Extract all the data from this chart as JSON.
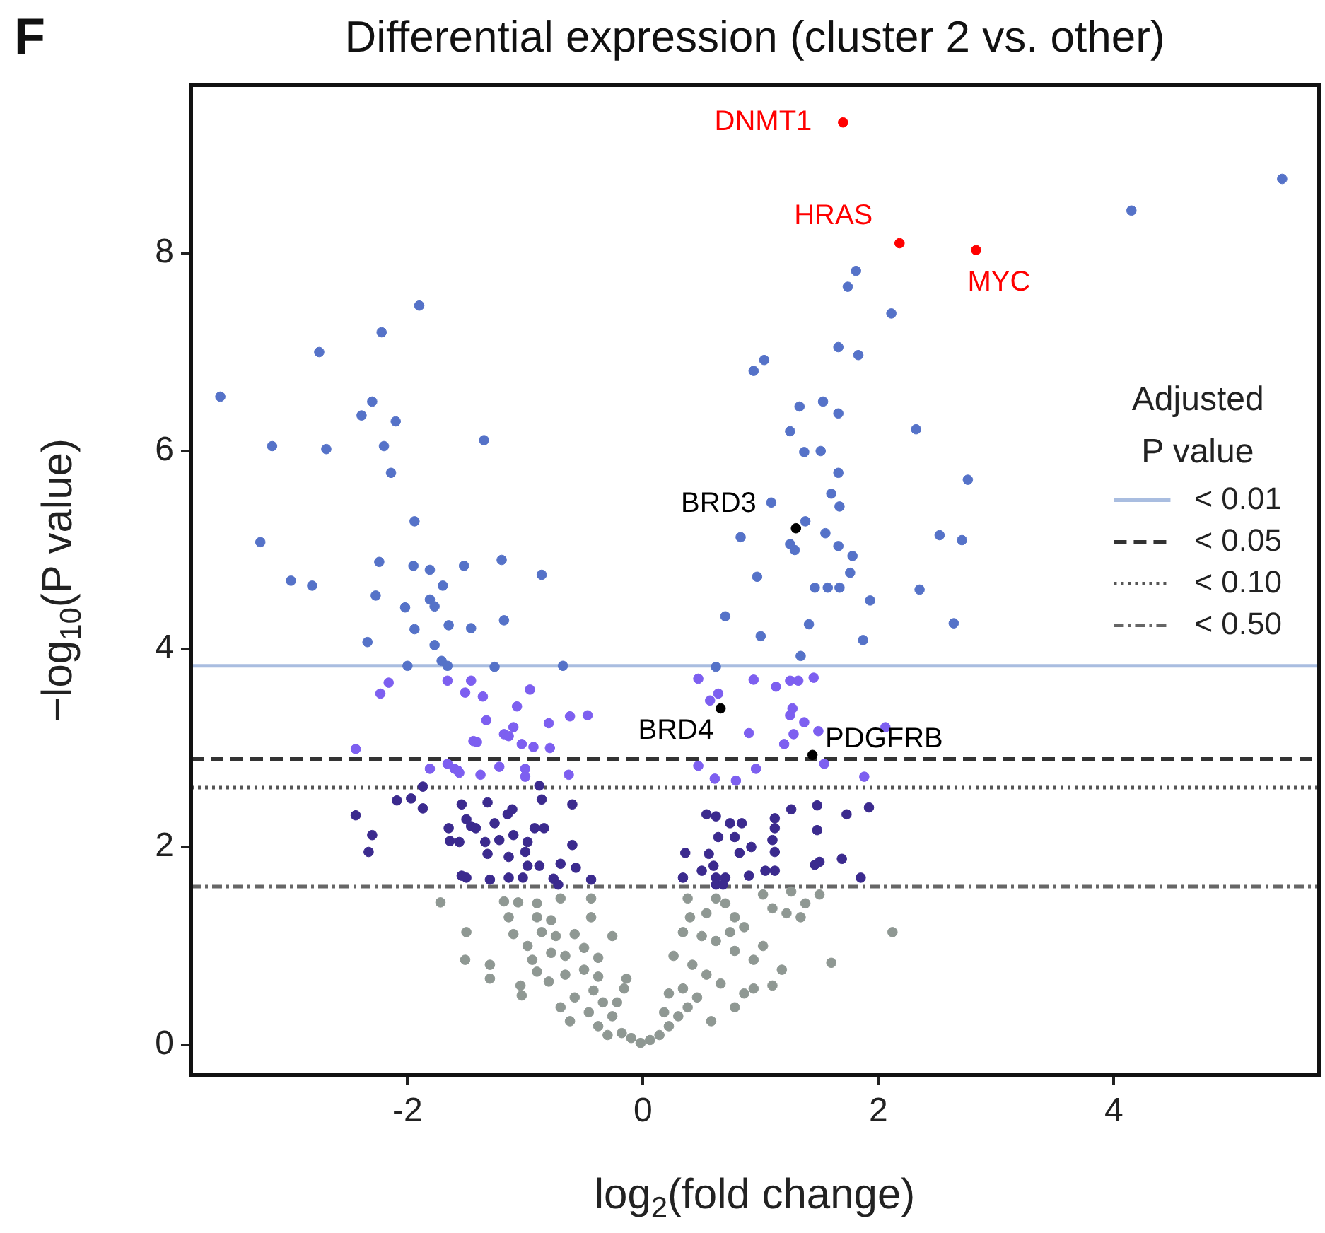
{
  "chart_data": {
    "type": "scatter",
    "title": "Differential expression (cluster 2 vs. other)",
    "xlabel": "log$_{2}$(fold change)",
    "ylabel": "−log$_{10}$(P value)",
    "legend_title": "Adjusted P value",
    "legend": "right",
    "grid": false,
    "marker": "circle",
    "xlim": [
      -3.84,
      5.74
    ],
    "xticks": [
      -2,
      0,
      2,
      4
    ],
    "ylim": [
      -0.3,
      9.7
    ],
    "yticks": [
      0,
      2,
      4,
      6,
      8
    ],
    "series": [
      {
        "type": "line",
        "name": "< 0.01",
        "color": "#a9bde0",
        "line_style": "solid",
        "marker": "none",
        "x": [
          -3.84,
          5.74
        ],
        "values": [
          3.83,
          3.83
        ]
      },
      {
        "type": "line",
        "name": "< 0.05",
        "color": "#333333",
        "line_style": "dashed",
        "marker": "none",
        "x": [
          -3.84,
          5.74
        ],
        "values": [
          2.89,
          2.89
        ]
      },
      {
        "type": "line",
        "name": "< 0.10",
        "color": "#555555",
        "line_style": "dotted",
        "marker": "none",
        "x": [
          -3.84,
          5.74
        ],
        "values": [
          2.6,
          2.6
        ]
      },
      {
        "type": "line",
        "name": "< 0.50",
        "color": "#666666",
        "line_style": "dashdot",
        "marker": "none",
        "x": [
          -3.84,
          5.74
        ],
        "values": [
          1.6,
          1.6
        ]
      },
      {
        "color": "#5572c8",
        "x": [
          -1.9,
          -2.22,
          -2.75,
          -3.59,
          -2.3,
          -2.39,
          -2.1,
          -3.15,
          -2.69,
          -2.2,
          -1.35,
          -2.14,
          -1.94,
          -3.25,
          -2.24,
          -1.95,
          -1.81,
          -1.52,
          -1.2,
          -0.86,
          -2.99,
          -2.81,
          -1.7,
          -2.27,
          -1.81,
          -1.77,
          -2.02,
          -1.94,
          -1.65,
          -1.46,
          -1.18,
          -2.34,
          -1.77,
          -2.0,
          -1.71,
          -1.66,
          -1.26,
          -0.68,
          1.0,
          1.41,
          1.87,
          1.34,
          0.62,
          5.43,
          4.15,
          1.81,
          1.74,
          2.11,
          1.66,
          1.83,
          1.03,
          0.94,
          1.33,
          1.53,
          1.66,
          2.32,
          1.25,
          1.37,
          1.51,
          1.66,
          2.76,
          1.09,
          1.6,
          1.67,
          1.38,
          0.83,
          1.55,
          2.52,
          2.71,
          1.25,
          1.29,
          1.66,
          1.78,
          1.76,
          0.97,
          1.46,
          1.57,
          1.67,
          2.35,
          1.93,
          0.7,
          2.64
        ],
        "values": [
          7.47,
          7.2,
          7.0,
          6.55,
          6.5,
          6.36,
          6.3,
          6.05,
          6.02,
          6.05,
          6.11,
          5.78,
          5.29,
          5.08,
          4.88,
          4.84,
          4.8,
          4.84,
          4.9,
          4.75,
          4.69,
          4.64,
          4.64,
          4.54,
          4.5,
          4.43,
          4.42,
          4.2,
          4.24,
          4.21,
          4.29,
          4.07,
          4.04,
          3.83,
          3.88,
          3.83,
          3.82,
          3.83,
          4.13,
          4.25,
          4.09,
          3.93,
          3.82,
          8.75,
          8.43,
          7.82,
          7.66,
          7.39,
          7.05,
          6.97,
          6.92,
          6.81,
          6.45,
          6.5,
          6.38,
          6.22,
          6.2,
          5.99,
          6.0,
          5.78,
          5.71,
          5.48,
          5.57,
          5.44,
          5.29,
          5.13,
          5.17,
          5.15,
          5.1,
          5.06,
          5.0,
          5.04,
          4.94,
          4.77,
          4.73,
          4.62,
          4.62,
          4.62,
          4.6,
          4.49,
          4.33,
          4.26
        ]
      },
      {
        "color": "#7d5ff0",
        "x": [
          -2.16,
          -2.23,
          -1.66,
          -1.46,
          -1.51,
          -1.44,
          -2.44,
          -1.81,
          -1.66,
          -1.6,
          -1.56,
          -1.36,
          -0.96,
          -1.07,
          -1.33,
          -1.1,
          -1.18,
          -1.14,
          -1.03,
          -0.93,
          -0.79,
          -1.41,
          -0.8,
          -0.62,
          -0.47,
          -1.57,
          -1.38,
          -1.22,
          -1.0,
          -1.0,
          -0.63,
          0.47,
          0.64,
          0.57,
          0.94,
          1.13,
          1.25,
          1.32,
          1.45,
          1.27,
          1.25,
          1.37,
          1.49,
          0.9,
          1.28,
          1.2,
          2.06,
          1.54,
          0.47,
          0.61,
          0.79,
          0.96,
          1.88
        ],
        "values": [
          3.66,
          3.55,
          3.68,
          3.68,
          3.56,
          3.07,
          2.99,
          2.79,
          2.84,
          2.79,
          2.75,
          3.52,
          3.59,
          3.42,
          3.28,
          3.21,
          3.14,
          3.12,
          3.04,
          3.01,
          3.0,
          3.06,
          3.25,
          3.32,
          3.33,
          2.77,
          2.73,
          2.81,
          2.79,
          2.71,
          2.73,
          3.7,
          3.55,
          3.48,
          3.69,
          3.62,
          3.68,
          3.68,
          3.71,
          3.4,
          3.33,
          3.26,
          3.17,
          3.15,
          3.14,
          3.04,
          3.21,
          2.84,
          2.82,
          2.69,
          2.67,
          2.79,
          2.71
        ]
      },
      {
        "color": "#3b2a8e",
        "x": [
          -1.87,
          -2.09,
          -1.97,
          -1.87,
          -2.44,
          -2.3,
          -2.33,
          -1.54,
          -1.5,
          -1.46,
          -1.65,
          -1.64,
          -1.56,
          -1.54,
          -1.5,
          -1.32,
          -1.42,
          -1.26,
          -1.15,
          -1.11,
          -0.88,
          -0.86,
          -0.6,
          -1.34,
          -1.22,
          -1.1,
          -0.98,
          -0.92,
          -0.84,
          -1.32,
          -1.14,
          -1.0,
          -0.88,
          -0.6,
          -0.7,
          -0.57,
          -1.3,
          -1.14,
          -1.02,
          -0.98,
          -0.76,
          -0.72,
          -0.44,
          0.54,
          0.62,
          0.74,
          0.84,
          1.12,
          1.12,
          1.26,
          1.48,
          1.73,
          1.92,
          1.48,
          0.64,
          0.78,
          0.92,
          1.1,
          1.12,
          0.36,
          0.56,
          0.82,
          0.6,
          0.5,
          0.34,
          0.62,
          0.7,
          0.9,
          1.04,
          1.12,
          1.46,
          1.5,
          1.69,
          1.85,
          0.62,
          0.68
        ],
        "values": [
          2.61,
          2.47,
          2.49,
          2.39,
          2.32,
          2.12,
          1.95,
          2.43,
          2.28,
          2.21,
          2.19,
          2.06,
          2.05,
          1.71,
          1.69,
          2.45,
          2.19,
          2.24,
          2.33,
          2.38,
          2.62,
          2.48,
          2.43,
          2.05,
          2.07,
          2.12,
          2.05,
          2.19,
          2.19,
          1.93,
          1.9,
          1.95,
          1.81,
          2.02,
          1.83,
          1.79,
          1.67,
          1.69,
          1.69,
          1.81,
          1.68,
          1.62,
          1.67,
          2.33,
          2.31,
          2.24,
          2.24,
          2.29,
          2.19,
          2.38,
          2.42,
          2.33,
          2.4,
          2.17,
          2.1,
          2.1,
          2.0,
          2.07,
          1.95,
          1.94,
          1.93,
          1.94,
          1.81,
          1.76,
          1.69,
          1.69,
          1.69,
          1.71,
          1.76,
          1.76,
          1.82,
          1.85,
          1.88,
          1.69,
          1.62,
          1.62
        ]
      },
      {
        "color": "#8f9893",
        "x": [
          -1.72,
          -1.5,
          -1.51,
          -1.3,
          -1.3,
          -1.04,
          -1.03,
          -1.18,
          -1.06,
          -0.9,
          -0.7,
          -0.44,
          -1.14,
          -0.9,
          -0.78,
          -1.1,
          -0.86,
          -0.44,
          -0.26,
          -0.98,
          -0.94,
          -0.74,
          -0.58,
          -0.78,
          -0.66,
          -0.5,
          -0.38,
          -0.9,
          -0.8,
          -0.66,
          -0.5,
          -0.38,
          -0.14,
          -0.16,
          -0.7,
          -0.58,
          -0.42,
          -0.62,
          -0.46,
          -0.34,
          -0.38,
          -0.26,
          -0.22,
          -0.3,
          -0.18,
          -0.1,
          -0.02,
          0.06,
          0.14,
          0.22,
          0.18,
          0.3,
          0.38,
          0.22,
          0.34,
          0.46,
          0.26,
          0.42,
          0.54,
          0.34,
          0.5,
          0.62,
          0.4,
          0.54,
          0.38,
          0.62,
          0.7,
          0.78,
          0.86,
          0.74,
          0.78,
          0.94,
          1.02,
          0.66,
          0.86,
          0.94,
          0.58,
          0.78,
          1.1,
          1.22,
          1.34,
          1.38,
          1.5,
          1.1,
          1.18,
          1.6,
          2.12,
          1.02,
          1.26
        ],
        "values": [
          1.44,
          1.14,
          0.86,
          0.81,
          0.67,
          0.6,
          0.5,
          1.45,
          1.44,
          1.43,
          1.48,
          1.48,
          1.29,
          1.29,
          1.26,
          1.12,
          1.14,
          1.29,
          1.1,
          1.0,
          0.86,
          1.1,
          1.12,
          0.93,
          0.9,
          0.98,
          0.88,
          0.74,
          0.64,
          0.71,
          0.76,
          0.69,
          0.67,
          0.57,
          0.38,
          0.48,
          0.55,
          0.24,
          0.33,
          0.43,
          0.19,
          0.29,
          0.43,
          0.1,
          0.12,
          0.07,
          0.02,
          0.05,
          0.1,
          0.19,
          0.33,
          0.29,
          0.38,
          0.52,
          0.57,
          0.48,
          0.9,
          0.81,
          0.71,
          1.14,
          1.1,
          1.05,
          1.29,
          1.33,
          1.48,
          1.48,
          1.43,
          1.29,
          1.19,
          1.14,
          0.95,
          0.86,
          1.0,
          0.62,
          0.52,
          0.57,
          0.24,
          0.38,
          1.38,
          1.33,
          1.29,
          1.43,
          1.52,
          0.6,
          0.76,
          0.83,
          1.14,
          1.52,
          1.55
        ]
      },
      {
        "color": "#ff0000",
        "colors": [
          "#ff0000",
          "#ff0000",
          "#ff0000",
          "#000000",
          "#000000",
          "#000000"
        ],
        "x": [
          1.7,
          2.18,
          2.83,
          1.3,
          0.66,
          1.44
        ],
        "values": [
          9.32,
          8.1,
          8.03,
          5.22,
          3.4,
          2.93
        ]
      }
    ],
    "annotations": [
      "F",
      {
        "text": "DNMT1",
        "x": 1.7,
        "y": 9.32
      },
      {
        "text": "HRAS",
        "x": 2.18,
        "y": 8.1
      },
      {
        "text": "MYC",
        "x": 2.83,
        "y": 8.03
      },
      {
        "text": "BRD3",
        "x": 1.3,
        "y": 5.22
      },
      {
        "text": "BRD4",
        "x": 0.66,
        "y": 3.4
      },
      {
        "text": "PDGFRB",
        "x": 1.44,
        "y": 2.93
      }
    ]
  }
}
